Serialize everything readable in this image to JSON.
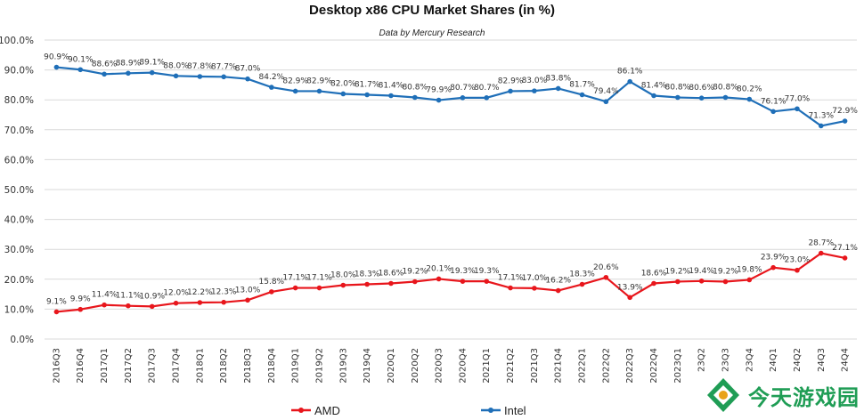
{
  "chart_data": {
    "type": "line",
    "title": "Desktop x86 CPU Market Shares (in %)",
    "subtitle": "Data by Mercury Research",
    "ylim": [
      0,
      100
    ],
    "yticks": [
      "0.0%",
      "10.0%",
      "20.0%",
      "30.0%",
      "40.0%",
      "50.0%",
      "60.0%",
      "70.0%",
      "80.0%",
      "90.0%",
      "100.0%"
    ],
    "grid": true,
    "legend_position": "bottom",
    "categories": [
      "2016Q3",
      "2016Q4",
      "2017Q1",
      "2017Q2",
      "2017Q3",
      "2017Q4",
      "2018Q1",
      "2018Q2",
      "2018Q3",
      "2018Q4",
      "2019Q1",
      "2019Q2",
      "2019Q3",
      "2019Q4",
      "2020Q1",
      "2020Q2",
      "2020Q3",
      "2020Q4",
      "2021Q1",
      "2021Q2",
      "2021Q3",
      "2021Q4",
      "2022Q1",
      "2022Q2",
      "2022Q3",
      "2022Q4",
      "2023Q1",
      "23Q2",
      "23Q3",
      "23Q4",
      "24Q1",
      "24Q2",
      "24Q3",
      "24Q4"
    ],
    "series": [
      {
        "name": "AMD",
        "color": "#e8161c",
        "values": [
          9.1,
          9.9,
          11.4,
          11.1,
          10.9,
          12.0,
          12.2,
          12.3,
          13.0,
          15.8,
          17.1,
          17.1,
          18.0,
          18.3,
          18.6,
          19.2,
          20.1,
          19.3,
          19.3,
          17.1,
          17.0,
          16.2,
          18.3,
          20.6,
          13.9,
          18.6,
          19.2,
          19.4,
          19.2,
          19.8,
          23.9,
          23.0,
          28.7,
          27.1
        ],
        "labels": [
          "9.1%",
          "9.9%",
          "11.4%",
          "11.1%",
          "10.9%",
          "12.0%",
          "12.2%",
          "12.3%",
          "13.0%",
          "15.8%",
          "17.1%",
          "17.1%",
          "18.0%",
          "18.3%",
          "18.6%",
          "19.2%",
          "20.1%",
          "19.3%",
          "19.3%",
          "17.1%",
          "17.0%",
          "16.2%",
          "18.3%",
          "20.6%",
          "13.9%",
          "18.6%",
          "19.2%",
          "19.4%",
          "19.2%",
          "19.8%",
          "23.9%",
          "23.0%",
          "28.7%",
          "27.1%"
        ]
      },
      {
        "name": "Intel",
        "color": "#1f6fb8",
        "values": [
          90.9,
          90.1,
          88.6,
          88.9,
          89.1,
          88.0,
          87.8,
          87.7,
          87.0,
          84.2,
          82.9,
          82.9,
          82.0,
          81.7,
          81.4,
          80.8,
          79.9,
          80.7,
          80.7,
          82.9,
          83.0,
          83.8,
          81.7,
          79.4,
          86.1,
          81.4,
          80.8,
          80.6,
          80.8,
          80.2,
          76.1,
          77.0,
          71.3,
          72.9
        ],
        "labels": [
          "90.9%",
          "90.1%",
          "88.6%",
          "88.9%",
          "89.1%",
          "88.0%",
          "87.8%",
          "87.7%",
          "87.0%",
          "84.2%",
          "82.9%",
          "82.9%",
          "82.0%",
          "81.7%",
          "81.4%",
          "80.8%",
          "79.9%",
          "80.7%",
          "80.7%",
          "82.9%",
          "83.0%",
          "83.8%",
          "81.7%",
          "79.4%",
          "86.1%",
          "81.4%",
          "80.8%",
          "80.6%",
          "80.8%",
          "80.2%",
          "76.1%",
          "77.0%",
          "71.3%",
          "72.9%"
        ]
      }
    ]
  },
  "watermark": {
    "text": "今天游戏园",
    "icon": "game-controller-logo-icon",
    "color": "#1f9d55"
  }
}
